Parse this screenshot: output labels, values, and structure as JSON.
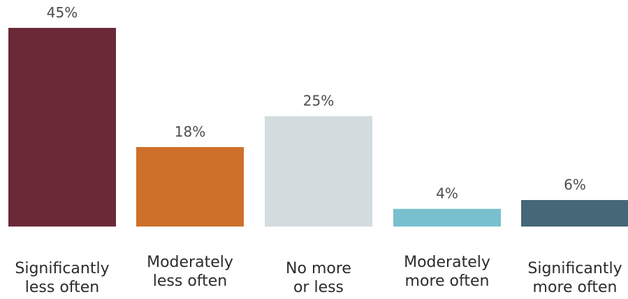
{
  "chart_data": {
    "type": "bar",
    "categories": [
      "Significantly less often",
      "Moderately less often",
      "No more or less",
      "Moderately more often",
      "Significantly more often"
    ],
    "category_lines": [
      [
        "Significantly",
        "less often"
      ],
      [
        "Moderately",
        "less often"
      ],
      [
        "No more",
        "or less"
      ],
      [
        "Moderately",
        "more often"
      ],
      [
        "Significantly",
        "more often"
      ]
    ],
    "values": [
      45,
      18,
      25,
      4,
      6
    ],
    "value_labels": [
      "45%",
      "18%",
      "25%",
      "4%",
      "6%"
    ],
    "colors": [
      "#6b2837",
      "#cf702a",
      "#d3dcdf",
      "#79c0cf",
      "#456778"
    ],
    "ylim": [
      0,
      45
    ],
    "grid": false,
    "legend": "none"
  }
}
